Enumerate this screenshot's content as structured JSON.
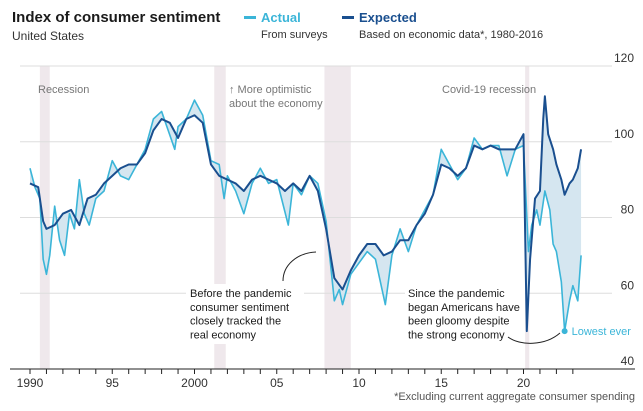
{
  "chart_data": {
    "type": "line",
    "title": "Index of consumer sentiment",
    "subtitle": "United States",
    "xlabel": "",
    "ylabel": "",
    "xlim": [
      1989.5,
      2024
    ],
    "ylim": [
      40,
      120
    ],
    "y_ticks": [
      40,
      60,
      80,
      100,
      120
    ],
    "x_ticks": [
      {
        "value": 1990,
        "label": "1990"
      },
      {
        "value": 1995,
        "label": "95"
      },
      {
        "value": 2000,
        "label": "2000"
      },
      {
        "value": 2005,
        "label": "05"
      },
      {
        "value": 2010,
        "label": "10"
      },
      {
        "value": 2015,
        "label": "15"
      },
      {
        "value": 2020,
        "label": "20"
      }
    ],
    "grid": true,
    "legend_position": "top",
    "series": [
      {
        "name": "Actual",
        "description": "From surveys",
        "color": "#3bb5d8",
        "x": [
          1990.0,
          1990.3,
          1990.6,
          1990.8,
          1991.0,
          1991.2,
          1991.5,
          1991.8,
          1992.1,
          1992.4,
          1992.7,
          1993.0,
          1993.3,
          1993.6,
          1994.0,
          1994.5,
          1995.0,
          1995.5,
          1996.0,
          1996.5,
          1997.0,
          1997.5,
          1998.0,
          1998.4,
          1998.8,
          1999.0,
          1999.5,
          2000.0,
          2000.5,
          2001.0,
          2001.5,
          2001.8,
          2002.0,
          2002.5,
          2003.0,
          2003.5,
          2004.0,
          2004.5,
          2005.0,
          2005.7,
          2006.0,
          2006.5,
          2007.0,
          2007.5,
          2008.0,
          2008.5,
          2008.8,
          2009.0,
          2009.5,
          2010.0,
          2010.5,
          2011.0,
          2011.6,
          2012.0,
          2012.5,
          2013.0,
          2013.5,
          2014.0,
          2014.5,
          2015.0,
          2015.5,
          2016.0,
          2016.5,
          2017.0,
          2017.5,
          2018.0,
          2018.5,
          2019.0,
          2019.5,
          2020.0,
          2020.3,
          2020.5,
          2020.8,
          2021.0,
          2021.3,
          2021.6,
          2021.8,
          2022.0,
          2022.3,
          2022.5,
          2022.8,
          2023.0,
          2023.3,
          2023.5
        ],
        "values": [
          93,
          88,
          85,
          69,
          65,
          70,
          83,
          74,
          70,
          81,
          77,
          90,
          81,
          78,
          85,
          87,
          95,
          91,
          90,
          94,
          98,
          106,
          108,
          103,
          98,
          104,
          106,
          111,
          107,
          95,
          94,
          85,
          91,
          87,
          81,
          89,
          93,
          89,
          90,
          78,
          89,
          86,
          91,
          89,
          79,
          58,
          61,
          57,
          65,
          68,
          71,
          69,
          57,
          70,
          77,
          71,
          78,
          82,
          86,
          98,
          94,
          90,
          93,
          101,
          98,
          99,
          99,
          91,
          98,
          99,
          71,
          78,
          82,
          78,
          87,
          82,
          73,
          71,
          63,
          50,
          58,
          62,
          58,
          70
        ]
      },
      {
        "name": "Expected",
        "description": "Based on economic data*, 1980-2016",
        "color": "#1a4f8f",
        "x": [
          1990.0,
          1990.5,
          1990.8,
          1991.0,
          1991.5,
          1992.0,
          1992.5,
          1993.0,
          1993.5,
          1994.0,
          1994.5,
          1995.0,
          1995.5,
          1996.0,
          1996.5,
          1997.0,
          1997.5,
          1998.0,
          1998.5,
          1999.0,
          1999.5,
          2000.0,
          2000.5,
          2001.0,
          2001.5,
          2002.0,
          2002.5,
          2003.0,
          2003.5,
          2004.0,
          2005.0,
          2005.5,
          2006.0,
          2006.5,
          2007.0,
          2007.5,
          2008.0,
          2008.5,
          2009.0,
          2009.5,
          2010.0,
          2010.5,
          2011.0,
          2011.5,
          2012.0,
          2012.5,
          2013.0,
          2013.5,
          2014.0,
          2014.5,
          2015.0,
          2015.5,
          2016.0,
          2016.5,
          2017.0,
          2017.5,
          2018.0,
          2018.5,
          2019.0,
          2019.5,
          2020.0,
          2020.2,
          2020.4,
          2020.7,
          2021.0,
          2021.2,
          2021.3,
          2021.5,
          2021.8,
          2022.0,
          2022.3,
          2022.5,
          2022.8,
          2023.0,
          2023.3,
          2023.5
        ],
        "values": [
          89,
          88,
          79,
          77,
          78,
          81,
          82,
          78,
          85,
          86,
          89,
          91,
          93,
          94,
          94,
          97,
          103,
          106,
          105,
          101,
          106,
          107,
          105,
          94,
          91,
          90,
          89,
          87,
          90,
          91,
          89,
          87,
          89,
          87,
          91,
          87,
          77,
          64,
          61,
          66,
          70,
          73,
          73,
          70,
          71,
          74,
          74,
          78,
          81,
          86,
          94,
          93,
          91,
          93,
          99,
          98,
          99,
          98,
          98,
          98,
          102,
          50,
          69,
          85,
          87,
          106,
          112,
          102,
          98,
          94,
          90,
          86,
          89,
          90,
          93,
          98
        ]
      }
    ],
    "recessions": [
      {
        "start": 1990.6,
        "end": 1991.2,
        "label": "Recession"
      },
      {
        "start": 2001.2,
        "end": 2001.9,
        "label": ""
      },
      {
        "start": 2007.9,
        "end": 2009.5,
        "label": ""
      },
      {
        "start": 2020.1,
        "end": 2020.35,
        "label": "Covid-19 recession"
      }
    ],
    "annotations": [
      {
        "id": "more-optimistic",
        "text": [
          "↑ More optimistic",
          "about the economy"
        ]
      },
      {
        "id": "before-pandemic",
        "text": [
          "Before the pandemic",
          "consumer sentiment",
          "closely tracked the",
          "real economy"
        ]
      },
      {
        "id": "since-pandemic",
        "text": [
          "Since the pandemic",
          "began Americans have",
          "been gloomy despite",
          "the strong economy"
        ]
      },
      {
        "id": "lowest-ever",
        "text": [
          "Lowest ever"
        ],
        "x": 2022.5,
        "y": 50
      }
    ],
    "footnote": "*Excluding current aggregate consumer spending"
  },
  "colors": {
    "actual": "#3bb5d8",
    "expected": "#1a4f8f",
    "gap_fill": "#d5e6f0",
    "recession": "#efe8ec",
    "grid": "#dddddd"
  }
}
